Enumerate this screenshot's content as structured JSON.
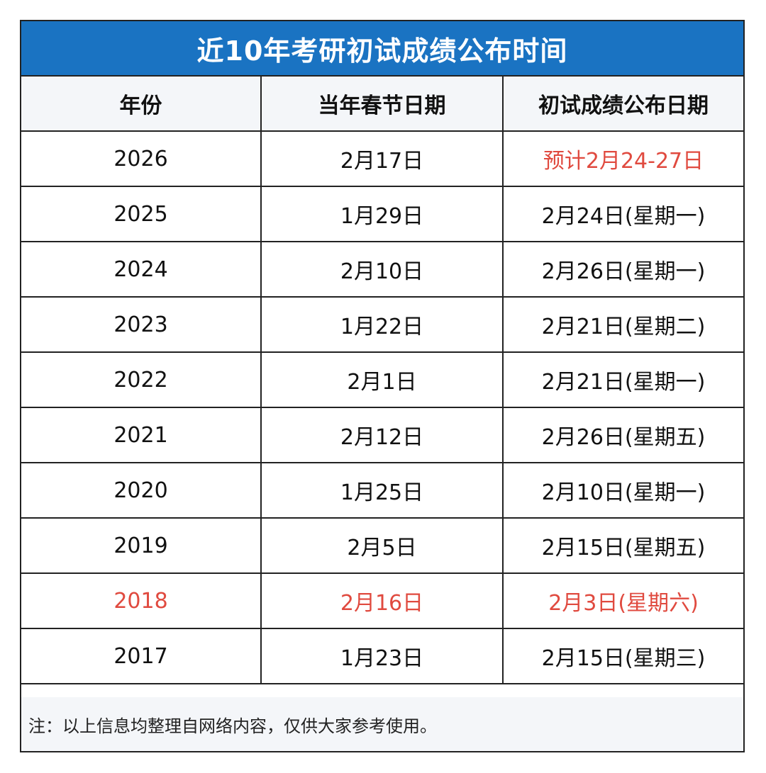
{
  "title": "近10年考研初试成绩公布时间",
  "columns": [
    "年份",
    "当年春节日期",
    "初试成绩公布日期"
  ],
  "rows": [
    {
      "year": "2026",
      "spring": "2月17日",
      "release": "预计2月24-27日",
      "style": "highlight-2026"
    },
    {
      "year": "2025",
      "spring": "1月29日",
      "release": "2月24日(星期一)",
      "style": "normal"
    },
    {
      "year": "2024",
      "spring": "2月10日",
      "release": "2月26日(星期一)",
      "style": "normal"
    },
    {
      "year": "2023",
      "spring": "1月22日",
      "release": "2月21日(星期二)",
      "style": "normal"
    },
    {
      "year": "2022",
      "spring": "2月1日",
      "release": "2月21日(星期一)",
      "style": "normal"
    },
    {
      "year": "2021",
      "spring": "2月12日",
      "release": "2月26日(星期五)",
      "style": "normal"
    },
    {
      "year": "2020",
      "spring": "1月25日",
      "release": "2月10日(星期一)",
      "style": "normal"
    },
    {
      "year": "2019",
      "spring": "2月5日",
      "release": "2月15日(星期五)",
      "style": "normal"
    },
    {
      "year": "2018",
      "spring": "2月16日",
      "release": "2月3日(星期六)",
      "style": "highlight-red"
    },
    {
      "year": "2017",
      "spring": "1月23日",
      "release": "2月15日(星期三)",
      "style": "normal"
    }
  ],
  "footnote": "注：以上信息均整理自网络内容，仅供大家参考使用。",
  "colors": {
    "title_bg": "#1a73c2",
    "header_bg": "#f4f6f9",
    "highlight_red": "#e04a3f",
    "border": "#222222"
  }
}
